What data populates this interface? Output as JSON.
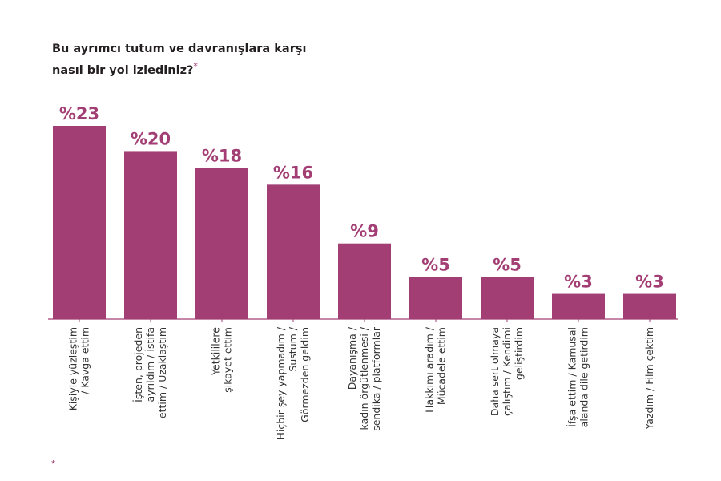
{
  "title": {
    "line1": "Bu ayrımcı tutum ve davranışlara karşı",
    "line2": "nasıl bir yol izlediniz?",
    "marker": "*"
  },
  "footnote_marker": "*",
  "colors": {
    "bar": "#a23e74",
    "axis": "#a23e74",
    "label": "#a23e74"
  },
  "chart_data": {
    "type": "bar",
    "title": "Bu ayrımcı tutum ve davranışlara karşı nasıl bir yol izlediniz?",
    "categories": [
      [
        "Kişiyle yüzleştim",
        "/ Kavga ettim"
      ],
      [
        "İşten, projeden",
        "ayrıldım / İstifa",
        "ettim / Uzaklaştım"
      ],
      [
        "Yetkililere",
        "şikayet ettim"
      ],
      [
        "Hiçbir şey yapmadım /",
        "Sustum /",
        "Görmezden geldim"
      ],
      [
        "Dayanışma /",
        "kadın örgütlenmesi /",
        "sendika / platformlar"
      ],
      [
        "Hakkımı aradım /",
        "Mücadele ettim"
      ],
      [
        "Daha sert olmaya",
        "çalıştım / Kendimi",
        "geliştirdim"
      ],
      [
        "İfşa ettim / Kamusal",
        "alanda dile getirdim"
      ],
      [
        "Yazdım / Film çektim"
      ]
    ],
    "values": [
      23,
      20,
      18,
      16,
      9,
      5,
      5,
      3,
      3
    ],
    "value_labels": [
      "%23",
      "%20",
      "%18",
      "%16",
      "%9",
      "%5",
      "%5",
      "%3",
      "%3"
    ],
    "ylim": [
      0,
      23
    ],
    "xlabel": "",
    "ylabel": "",
    "grid": false,
    "legend": "none"
  }
}
